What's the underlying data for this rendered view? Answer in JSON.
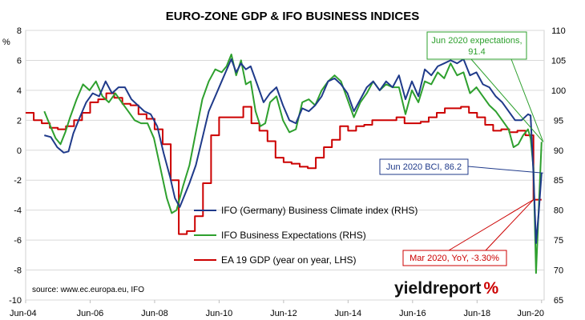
{
  "chart_data": {
    "type": "line",
    "title": "EURO-ZONE GDP & IFO BUSINESS INDICES",
    "y_left": {
      "unit_label": "%",
      "range": [
        -10,
        8
      ],
      "ticks": [
        "-10",
        "-8",
        "-6",
        "-4",
        "-2",
        "0",
        "2",
        "4",
        "6",
        "8"
      ]
    },
    "y_right": {
      "range": [
        65,
        110
      ],
      "ticks": [
        "65",
        "70",
        "75",
        "80",
        "85",
        "90",
        "95",
        "100",
        "105",
        "110"
      ]
    },
    "x": {
      "range": [
        2004.42,
        2020.5
      ],
      "ticks": [
        {
          "label": "Jun-04",
          "value": 2004.42
        },
        {
          "label": "Jun-06",
          "value": 2006.42
        },
        {
          "label": "Jun-08",
          "value": 2008.42
        },
        {
          "label": "Jun-10",
          "value": 2010.42
        },
        {
          "label": "Jun-12",
          "value": 2012.42
        },
        {
          "label": "Jun-14",
          "value": 2014.42
        },
        {
          "label": "Jun-16",
          "value": 2016.42
        },
        {
          "label": "Jun-18",
          "value": 2018.42
        },
        {
          "label": "Jun-20",
          "value": 2020.42
        }
      ]
    },
    "grid": true,
    "series": [
      {
        "name": "IFO (Germany) Business Climate index (RHS)",
        "axis": "right",
        "color": "#1f3a8a",
        "points": [
          [
            2005.0,
            92.5
          ],
          [
            2005.2,
            92.2
          ],
          [
            2005.4,
            90.5
          ],
          [
            2005.6,
            89.6
          ],
          [
            2005.75,
            89.8
          ],
          [
            2005.9,
            92.8
          ],
          [
            2006.1,
            95.5
          ],
          [
            2006.3,
            98.0
          ],
          [
            2006.5,
            99.5
          ],
          [
            2006.7,
            99.0
          ],
          [
            2006.9,
            101.5
          ],
          [
            2007.1,
            99.5
          ],
          [
            2007.3,
            100.5
          ],
          [
            2007.5,
            100.5
          ],
          [
            2007.7,
            98.5
          ],
          [
            2007.9,
            97.5
          ],
          [
            2008.1,
            96.5
          ],
          [
            2008.3,
            96.0
          ],
          [
            2008.5,
            94.0
          ],
          [
            2008.7,
            89.5
          ],
          [
            2008.9,
            85.5
          ],
          [
            2009.05,
            82.0
          ],
          [
            2009.2,
            80.5
          ],
          [
            2009.35,
            82.5
          ],
          [
            2009.5,
            84.5
          ],
          [
            2009.7,
            87.5
          ],
          [
            2009.9,
            92.0
          ],
          [
            2010.1,
            96.5
          ],
          [
            2010.3,
            99.0
          ],
          [
            2010.5,
            101.5
          ],
          [
            2010.7,
            104.0
          ],
          [
            2010.8,
            105.2
          ],
          [
            2010.95,
            103.0
          ],
          [
            2011.1,
            104.5
          ],
          [
            2011.25,
            103.5
          ],
          [
            2011.4,
            104.0
          ],
          [
            2011.6,
            101.0
          ],
          [
            2011.8,
            98.0
          ],
          [
            2012.0,
            99.5
          ],
          [
            2012.2,
            100.5
          ],
          [
            2012.4,
            97.5
          ],
          [
            2012.6,
            95.0
          ],
          [
            2012.8,
            94.5
          ],
          [
            2013.0,
            97.0
          ],
          [
            2013.2,
            96.5
          ],
          [
            2013.4,
            97.5
          ],
          [
            2013.6,
            99.0
          ],
          [
            2013.8,
            101.5
          ],
          [
            2014.0,
            102.0
          ],
          [
            2014.2,
            101.0
          ],
          [
            2014.4,
            99.5
          ],
          [
            2014.6,
            96.5
          ],
          [
            2014.8,
            98.5
          ],
          [
            2015.0,
            100.5
          ],
          [
            2015.2,
            101.5
          ],
          [
            2015.4,
            100.0
          ],
          [
            2015.6,
            101.5
          ],
          [
            2015.8,
            100.5
          ],
          [
            2016.0,
            102.5
          ],
          [
            2016.2,
            98.5
          ],
          [
            2016.4,
            101.5
          ],
          [
            2016.6,
            99.0
          ],
          [
            2016.8,
            103.5
          ],
          [
            2017.0,
            102.5
          ],
          [
            2017.2,
            104.0
          ],
          [
            2017.4,
            104.5
          ],
          [
            2017.6,
            105.0
          ],
          [
            2017.8,
            104.5
          ],
          [
            2018.0,
            105.2
          ],
          [
            2018.2,
            102.5
          ],
          [
            2018.4,
            103.0
          ],
          [
            2018.6,
            101.0
          ],
          [
            2018.8,
            100.5
          ],
          [
            2019.0,
            99.0
          ],
          [
            2019.2,
            98.0
          ],
          [
            2019.4,
            96.5
          ],
          [
            2019.6,
            95.0
          ],
          [
            2019.8,
            95.0
          ],
          [
            2020.0,
            96.0
          ],
          [
            2020.08,
            95.8
          ],
          [
            2020.17,
            86.0
          ],
          [
            2020.25,
            74.5
          ],
          [
            2020.33,
            79.5
          ],
          [
            2020.42,
            86.2
          ]
        ]
      },
      {
        "name": "IFO Business Expectations (RHS)",
        "axis": "right",
        "color": "#2ea02e",
        "points": [
          [
            2005.0,
            96.5
          ],
          [
            2005.15,
            94.5
          ],
          [
            2005.35,
            92.0
          ],
          [
            2005.5,
            91.0
          ],
          [
            2005.65,
            93.0
          ],
          [
            2005.8,
            95.5
          ],
          [
            2006.0,
            98.5
          ],
          [
            2006.2,
            101.0
          ],
          [
            2006.4,
            100.0
          ],
          [
            2006.6,
            101.5
          ],
          [
            2006.8,
            99.0
          ],
          [
            2007.0,
            98.0
          ],
          [
            2007.2,
            99.5
          ],
          [
            2007.4,
            98.0
          ],
          [
            2007.6,
            96.5
          ],
          [
            2007.8,
            95.0
          ],
          [
            2008.0,
            94.5
          ],
          [
            2008.2,
            94.5
          ],
          [
            2008.4,
            92.0
          ],
          [
            2008.6,
            87.0
          ],
          [
            2008.8,
            82.0
          ],
          [
            2008.95,
            79.5
          ],
          [
            2009.1,
            80.0
          ],
          [
            2009.3,
            84.0
          ],
          [
            2009.5,
            87.5
          ],
          [
            2009.7,
            93.0
          ],
          [
            2009.9,
            98.5
          ],
          [
            2010.1,
            101.5
          ],
          [
            2010.3,
            103.5
          ],
          [
            2010.5,
            103.0
          ],
          [
            2010.65,
            104.0
          ],
          [
            2010.8,
            106.0
          ],
          [
            2010.95,
            102.5
          ],
          [
            2011.1,
            105.0
          ],
          [
            2011.25,
            101.0
          ],
          [
            2011.4,
            101.5
          ],
          [
            2011.55,
            96.5
          ],
          [
            2011.7,
            94.0
          ],
          [
            2011.85,
            94.5
          ],
          [
            2012.0,
            98.0
          ],
          [
            2012.2,
            99.0
          ],
          [
            2012.4,
            95.0
          ],
          [
            2012.6,
            93.0
          ],
          [
            2012.8,
            93.5
          ],
          [
            2013.0,
            98.0
          ],
          [
            2013.2,
            98.5
          ],
          [
            2013.4,
            97.5
          ],
          [
            2013.6,
            100.0
          ],
          [
            2013.8,
            101.5
          ],
          [
            2014.0,
            102.5
          ],
          [
            2014.2,
            101.5
          ],
          [
            2014.4,
            98.5
          ],
          [
            2014.6,
            95.5
          ],
          [
            2014.8,
            98.0
          ],
          [
            2015.0,
            99.5
          ],
          [
            2015.2,
            101.5
          ],
          [
            2015.4,
            100.0
          ],
          [
            2015.6,
            101.0
          ],
          [
            2015.8,
            100.5
          ],
          [
            2016.0,
            100.5
          ],
          [
            2016.2,
            96.0
          ],
          [
            2016.4,
            100.0
          ],
          [
            2016.6,
            98.0
          ],
          [
            2016.8,
            101.5
          ],
          [
            2017.0,
            101.0
          ],
          [
            2017.2,
            103.0
          ],
          [
            2017.4,
            102.0
          ],
          [
            2017.6,
            104.5
          ],
          [
            2017.8,
            102.5
          ],
          [
            2018.0,
            103.0
          ],
          [
            2018.2,
            99.5
          ],
          [
            2018.4,
            100.5
          ],
          [
            2018.6,
            99.0
          ],
          [
            2018.8,
            97.5
          ],
          [
            2019.0,
            96.5
          ],
          [
            2019.2,
            95.0
          ],
          [
            2019.4,
            93.5
          ],
          [
            2019.55,
            90.5
          ],
          [
            2019.7,
            91.0
          ],
          [
            2019.85,
            92.5
          ],
          [
            2020.0,
            93.5
          ],
          [
            2020.08,
            92.0
          ],
          [
            2020.17,
            87.0
          ],
          [
            2020.25,
            69.5
          ],
          [
            2020.33,
            80.0
          ],
          [
            2020.42,
            91.4
          ]
        ]
      },
      {
        "name": "EA 19 GDP (year on year, LHS)",
        "axis": "left",
        "color": "#cc0000",
        "step": true,
        "points": [
          [
            2004.42,
            2.5
          ],
          [
            2004.67,
            2.0
          ],
          [
            2004.92,
            1.8
          ],
          [
            2005.17,
            1.5
          ],
          [
            2005.42,
            1.4
          ],
          [
            2005.67,
            1.6
          ],
          [
            2005.92,
            2.0
          ],
          [
            2006.17,
            2.5
          ],
          [
            2006.42,
            3.2
          ],
          [
            2006.67,
            3.4
          ],
          [
            2006.92,
            3.8
          ],
          [
            2007.17,
            3.5
          ],
          [
            2007.42,
            3.1
          ],
          [
            2007.67,
            3.0
          ],
          [
            2007.92,
            2.4
          ],
          [
            2008.17,
            2.1
          ],
          [
            2008.42,
            1.4
          ],
          [
            2008.67,
            0.4
          ],
          [
            2008.92,
            -2.0
          ],
          [
            2009.17,
            -5.6
          ],
          [
            2009.42,
            -5.4
          ],
          [
            2009.67,
            -4.4
          ],
          [
            2009.92,
            -2.2
          ],
          [
            2010.17,
            1.0
          ],
          [
            2010.42,
            2.2
          ],
          [
            2010.67,
            2.2
          ],
          [
            2010.92,
            2.2
          ],
          [
            2011.17,
            2.9
          ],
          [
            2011.42,
            1.8
          ],
          [
            2011.67,
            1.3
          ],
          [
            2011.92,
            0.6
          ],
          [
            2012.17,
            -0.5
          ],
          [
            2012.42,
            -0.8
          ],
          [
            2012.67,
            -0.9
          ],
          [
            2012.92,
            -1.1
          ],
          [
            2013.17,
            -1.2
          ],
          [
            2013.42,
            -0.5
          ],
          [
            2013.67,
            0.2
          ],
          [
            2013.92,
            0.7
          ],
          [
            2014.17,
            1.6
          ],
          [
            2014.42,
            1.3
          ],
          [
            2014.67,
            1.6
          ],
          [
            2014.92,
            1.7
          ],
          [
            2015.17,
            2.0
          ],
          [
            2015.42,
            2.0
          ],
          [
            2015.67,
            2.0
          ],
          [
            2015.92,
            2.2
          ],
          [
            2016.17,
            1.8
          ],
          [
            2016.42,
            1.8
          ],
          [
            2016.67,
            1.9
          ],
          [
            2016.92,
            2.2
          ],
          [
            2017.17,
            2.5
          ],
          [
            2017.42,
            2.8
          ],
          [
            2017.67,
            2.8
          ],
          [
            2017.92,
            2.9
          ],
          [
            2018.17,
            2.5
          ],
          [
            2018.42,
            2.2
          ],
          [
            2018.67,
            1.7
          ],
          [
            2018.92,
            1.3
          ],
          [
            2019.17,
            1.4
          ],
          [
            2019.42,
            1.2
          ],
          [
            2019.67,
            1.3
          ],
          [
            2019.92,
            1.0
          ],
          [
            2020.17,
            -3.3
          ],
          [
            2020.42,
            -3.3
          ]
        ]
      }
    ],
    "legend": {
      "placement": "center"
    },
    "annotations": [
      {
        "text": "Jun 2020 expectations, 91.4",
        "line1": "Jun 2020 expectations,",
        "line2": "91.4",
        "color": "#2ea02e",
        "target_x": 2020.42,
        "target_y": 91.4,
        "target_axis": "right"
      },
      {
        "text": "Jun 2020 BCI, 86.2",
        "color": "#1f3a8a",
        "target_x": 2020.42,
        "target_y": 86.2,
        "target_axis": "right"
      },
      {
        "text": "Mar 2020, YoY, -3.30%",
        "color": "#cc0000",
        "target_x": 2020.17,
        "target_y": -3.3,
        "target_axis": "left"
      }
    ],
    "source": "source: www.ec.europa.eu, IFO",
    "logo": {
      "word": "yieldreport",
      "symbol": "%",
      "word_color": "#111111",
      "symbol_color": "#cc0000"
    }
  }
}
